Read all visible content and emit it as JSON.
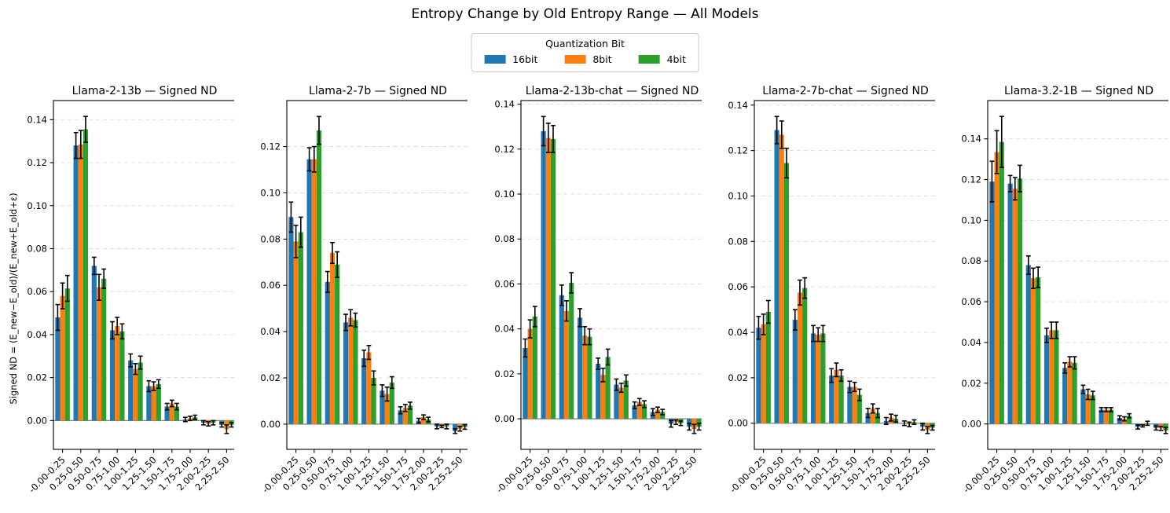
{
  "title": "Entropy Change by Old Entropy Range — All Models",
  "ylabel": "Signed ND = (E_new−E_old)/(E_new+E_old+ε)",
  "legend": {
    "title": "Quantization Bit",
    "entries": [
      {
        "label": "16bit",
        "color": "#1f77b4"
      },
      {
        "label": "8bit",
        "color": "#ff7f0e"
      },
      {
        "label": "4bit",
        "color": "#2ca02c"
      }
    ]
  },
  "categories": [
    "-0.00-0.25",
    "0.25-0.50",
    "0.50-0.75",
    "0.75-1.00",
    "1.00-1.25",
    "1.25-1.50",
    "1.50-1.75",
    "1.75-2.00",
    "2.00-2.25",
    "2.25-2.50"
  ],
  "chart_data": [
    {
      "type": "bar",
      "title": "Llama-2-13b — Signed ND",
      "categories": [
        "-0.00-0.25",
        "0.25-0.50",
        "0.50-0.75",
        "0.75-1.00",
        "1.00-1.25",
        "1.25-1.50",
        "1.50-1.75",
        "1.75-2.00",
        "2.00-2.25",
        "2.25-2.50"
      ],
      "ylim": [
        -0.0134,
        0.1489
      ],
      "yticks": [
        0.0,
        0.02,
        0.04,
        0.06,
        0.08,
        0.1,
        0.12,
        0.14
      ],
      "series": [
        {
          "name": "16bit",
          "color": "#1f77b4",
          "values": [
            0.048,
            0.128,
            0.072,
            0.042,
            0.028,
            0.016,
            0.0065,
            0.0005,
            -0.001,
            -0.002
          ],
          "errors": [
            0.006,
            0.006,
            0.004,
            0.004,
            0.003,
            0.0025,
            0.0015,
            0.001,
            0.001,
            0.001
          ]
        },
        {
          "name": "8bit",
          "color": "#ff7f0e",
          "values": [
            0.058,
            0.1285,
            0.062,
            0.044,
            0.024,
            0.016,
            0.008,
            0.001,
            -0.0015,
            -0.004
          ],
          "errors": [
            0.006,
            0.0065,
            0.006,
            0.004,
            0.0025,
            0.002,
            0.0015,
            0.001,
            0.001,
            0.002
          ]
        },
        {
          "name": "4bit",
          "color": "#2ca02c",
          "values": [
            0.0615,
            0.1355,
            0.066,
            0.0415,
            0.027,
            0.017,
            0.0065,
            0.0015,
            -0.001,
            -0.002
          ],
          "errors": [
            0.006,
            0.006,
            0.0045,
            0.0035,
            0.003,
            0.002,
            0.0015,
            0.001,
            0.001,
            0.001
          ]
        }
      ]
    },
    {
      "type": "bar",
      "title": "Llama-2-7b — Signed ND",
      "categories": [
        "-0.00-0.25",
        "0.25-0.50",
        "0.50-0.75",
        "0.75-1.00",
        "1.00-1.25",
        "1.25-1.50",
        "1.50-1.75",
        "1.75-2.00",
        "2.00-2.25",
        "2.25-2.50"
      ],
      "ylim": [
        -0.0109,
        0.1399
      ],
      "yticks": [
        0.0,
        0.02,
        0.04,
        0.06,
        0.08,
        0.1,
        0.12
      ],
      "series": [
        {
          "name": "16bit",
          "color": "#1f77b4",
          "values": [
            0.0895,
            0.1145,
            0.0615,
            0.044,
            0.0285,
            0.0145,
            0.006,
            0.0015,
            -0.001,
            -0.003
          ],
          "errors": [
            0.0065,
            0.005,
            0.0045,
            0.0035,
            0.0035,
            0.0025,
            0.0015,
            0.001,
            0.001,
            0.001
          ]
        },
        {
          "name": "8bit",
          "color": "#ff7f0e",
          "values": [
            0.079,
            0.1145,
            0.074,
            0.046,
            0.031,
            0.013,
            0.007,
            0.003,
            -0.001,
            -0.002
          ],
          "errors": [
            0.007,
            0.0055,
            0.0045,
            0.0035,
            0.003,
            0.003,
            0.0015,
            0.001,
            0.0005,
            0.001
          ]
        },
        {
          "name": "4bit",
          "color": "#2ca02c",
          "values": [
            0.083,
            0.127,
            0.069,
            0.045,
            0.02,
            0.018,
            0.008,
            0.002,
            -0.001,
            -0.0012
          ],
          "errors": [
            0.0065,
            0.006,
            0.0055,
            0.003,
            0.003,
            0.0025,
            0.0015,
            0.001,
            0.001,
            0.001
          ]
        }
      ]
    },
    {
      "type": "bar",
      "title": "Llama-2-13b-chat — Signed ND",
      "categories": [
        "-0.00-0.25",
        "0.25-0.50",
        "0.50-0.75",
        "0.75-1.00",
        "1.00-1.25",
        "1.25-1.50",
        "1.50-1.75",
        "1.75-2.00",
        "2.00-2.25",
        "2.25-2.50"
      ],
      "ylim": [
        -0.0136,
        0.1416
      ],
      "yticks": [
        0.0,
        0.02,
        0.04,
        0.06,
        0.08,
        0.1,
        0.12,
        0.14
      ],
      "series": [
        {
          "name": "16bit",
          "color": "#1f77b4",
          "values": [
            0.0315,
            0.128,
            0.055,
            0.045,
            0.0245,
            0.0152,
            0.006,
            0.003,
            -0.0022,
            -0.0035
          ],
          "errors": [
            0.004,
            0.0065,
            0.0045,
            0.004,
            0.0025,
            0.0025,
            0.0015,
            0.0015,
            0.0015,
            0.0015
          ]
        },
        {
          "name": "8bit",
          "color": "#ff7f0e",
          "values": [
            0.04,
            0.125,
            0.048,
            0.037,
            0.0195,
            0.0138,
            0.0075,
            0.004,
            -0.0015,
            -0.0045
          ],
          "errors": [
            0.004,
            0.0065,
            0.0045,
            0.004,
            0.003,
            0.002,
            0.0015,
            0.0012,
            0.001,
            0.002
          ]
        },
        {
          "name": "4bit",
          "color": "#2ca02c",
          "values": [
            0.0455,
            0.1245,
            0.0605,
            0.0365,
            0.0275,
            0.017,
            0.0065,
            0.003,
            -0.002,
            -0.0035
          ],
          "errors": [
            0.0045,
            0.006,
            0.0045,
            0.0035,
            0.0035,
            0.0025,
            0.0015,
            0.0012,
            0.001,
            0.0015
          ]
        }
      ]
    },
    {
      "type": "bar",
      "title": "Llama-2-7b-chat — Signed ND",
      "categories": [
        "-0.00-0.25",
        "0.25-0.50",
        "0.50-0.75",
        "0.75-1.00",
        "1.00-1.25",
        "1.25-1.50",
        "1.50-1.75",
        "1.75-2.00",
        "2.00-2.25",
        "2.25-2.50"
      ],
      "ylim": [
        -0.0115,
        0.142
      ],
      "yticks": [
        0.0,
        0.02,
        0.04,
        0.06,
        0.08,
        0.1,
        0.12,
        0.14
      ],
      "series": [
        {
          "name": "16bit",
          "color": "#1f77b4",
          "values": [
            0.042,
            0.129,
            0.0455,
            0.0395,
            0.021,
            0.016,
            0.0045,
            0.001,
            0.0,
            -0.0015
          ],
          "errors": [
            0.005,
            0.006,
            0.0045,
            0.0035,
            0.003,
            0.0025,
            0.002,
            0.0015,
            0.001,
            0.0015
          ]
        },
        {
          "name": "8bit",
          "color": "#ff7f0e",
          "values": [
            0.0435,
            0.127,
            0.0575,
            0.039,
            0.0235,
            0.016,
            0.0065,
            0.0025,
            -0.0005,
            -0.003
          ],
          "errors": [
            0.0045,
            0.006,
            0.0055,
            0.003,
            0.003,
            0.002,
            0.002,
            0.0015,
            0.001,
            0.0015
          ]
        },
        {
          "name": "4bit",
          "color": "#2ca02c",
          "values": [
            0.049,
            0.1145,
            0.0595,
            0.0395,
            0.021,
            0.0125,
            0.0045,
            0.002,
            0.0005,
            -0.002
          ],
          "errors": [
            0.005,
            0.0065,
            0.0045,
            0.0035,
            0.0025,
            0.0025,
            0.002,
            0.0015,
            0.001,
            0.001
          ]
        }
      ]
    },
    {
      "type": "bar",
      "title": "Llama-3.2-1B — Signed ND",
      "categories": [
        "-0.00-0.25",
        "0.25-0.50",
        "0.50-0.75",
        "0.75-1.00",
        "1.00-1.25",
        "1.25-1.50",
        "1.50-1.75",
        "1.75-2.00",
        "2.00-2.25",
        "2.25-2.50"
      ],
      "ylim": [
        -0.0125,
        0.1588
      ],
      "yticks": [
        0.0,
        0.02,
        0.04,
        0.06,
        0.08,
        0.1,
        0.12,
        0.14
      ],
      "series": [
        {
          "name": "16bit",
          "color": "#1f77b4",
          "values": [
            0.119,
            0.118,
            0.078,
            0.0435,
            0.0275,
            0.017,
            0.007,
            0.003,
            -0.0015,
            -0.002
          ],
          "errors": [
            0.01,
            0.004,
            0.0045,
            0.0035,
            0.0025,
            0.002,
            0.001,
            0.001,
            0.001,
            0.001
          ]
        },
        {
          "name": "8bit",
          "color": "#ff7f0e",
          "values": [
            0.1335,
            0.1155,
            0.0715,
            0.046,
            0.0305,
            0.0145,
            0.007,
            0.0025,
            -0.001,
            -0.0022
          ],
          "errors": [
            0.0105,
            0.0055,
            0.005,
            0.004,
            0.0025,
            0.0025,
            0.001,
            0.001,
            0.0005,
            0.001
          ]
        },
        {
          "name": "4bit",
          "color": "#2ca02c",
          "values": [
            0.1385,
            0.1205,
            0.072,
            0.046,
            0.03,
            0.014,
            0.007,
            0.004,
            0.0003,
            -0.0032
          ],
          "errors": [
            0.0125,
            0.0065,
            0.005,
            0.004,
            0.003,
            0.002,
            0.001,
            0.001,
            0.001,
            0.0015
          ]
        }
      ]
    }
  ],
  "layout": {
    "grid": "dashed",
    "legend_position": "top-center",
    "bar_group_width": 0.8
  }
}
